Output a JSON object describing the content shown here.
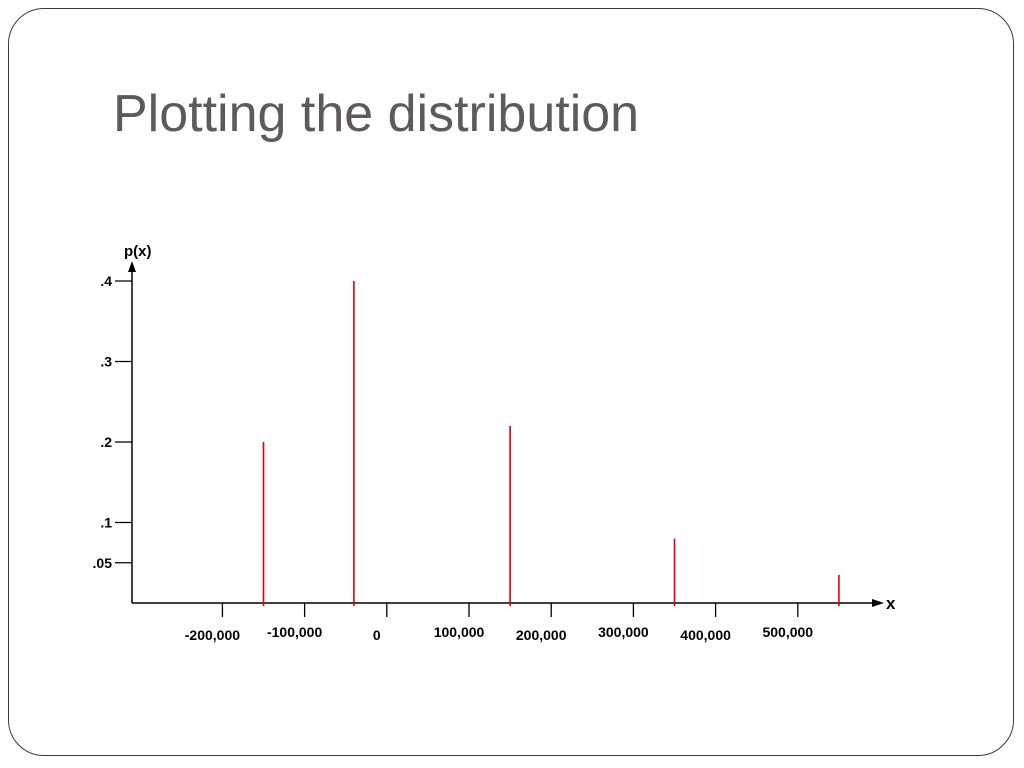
{
  "slide": {
    "title": "Plotting the distribution"
  },
  "chart_data": {
    "type": "bar",
    "title": "",
    "xlabel": "x",
    "ylabel": "p(x)",
    "x_ticks": [
      {
        "value": -200000,
        "label": "-200,000"
      },
      {
        "value": -100000,
        "label": "-100,000"
      },
      {
        "value": 0,
        "label": "0"
      },
      {
        "value": 100000,
        "label": "100,000"
      },
      {
        "value": 200000,
        "label": "200,000"
      },
      {
        "value": 300000,
        "label": "300,000"
      },
      {
        "value": 400000,
        "label": "400,000"
      },
      {
        "value": 500000,
        "label": "500,000"
      }
    ],
    "y_ticks": [
      {
        "value": 0.05,
        "label": ".05"
      },
      {
        "value": 0.1,
        "label": ".1"
      },
      {
        "value": 0.2,
        "label": ".2"
      },
      {
        "value": 0.3,
        "label": ".3"
      },
      {
        "value": 0.4,
        "label": ".4"
      }
    ],
    "points": [
      {
        "x": -150000,
        "p": 0.2
      },
      {
        "x": -40000,
        "p": 0.4
      },
      {
        "x": 150000,
        "p": 0.22
      },
      {
        "x": 350000,
        "p": 0.08
      },
      {
        "x": 550000,
        "p": 0.035
      }
    ],
    "xlim": [
      -310000,
      600000
    ],
    "ylim": [
      0,
      0.4
    ],
    "grid": false,
    "bar_color": "#e00000",
    "axis_color": "#000000"
  }
}
